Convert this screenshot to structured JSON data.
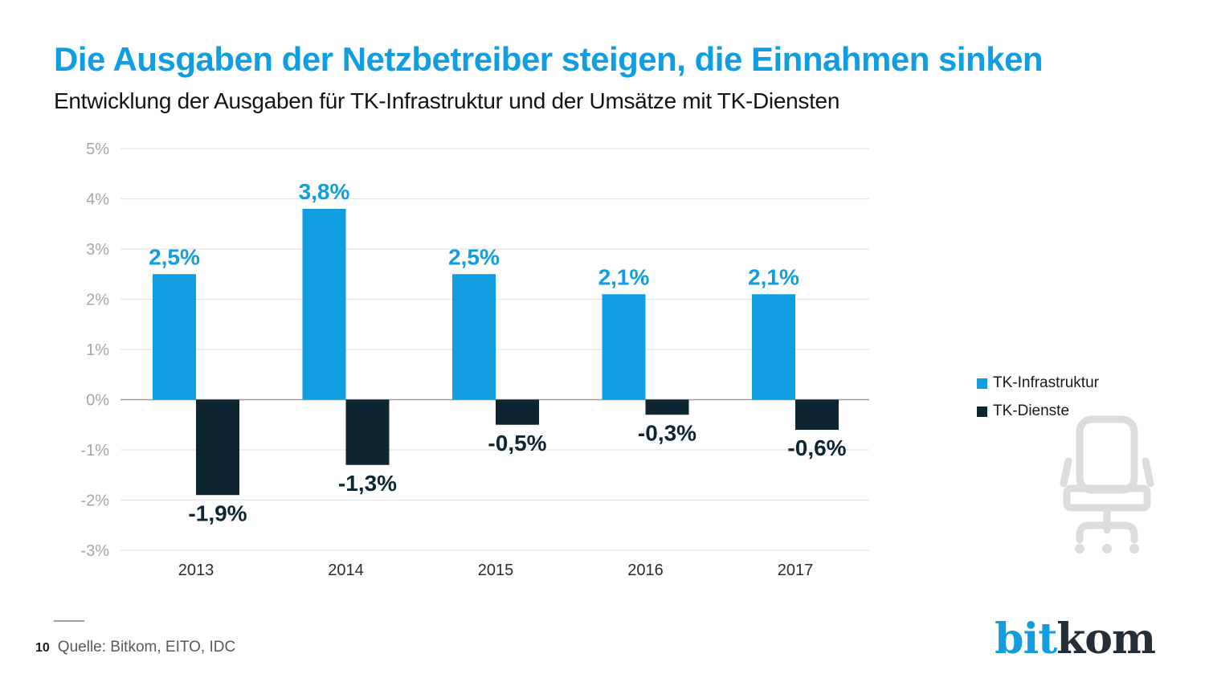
{
  "header": {
    "title": "Die Ausgaben der Netzbetreiber steigen, die Einnahmen sinken",
    "subtitle": "Entwicklung der Ausgaben für TK-Infrastruktur und der Umsätze mit TK-Diensten"
  },
  "chart_data": {
    "type": "bar",
    "categories": [
      "2013",
      "2014",
      "2015",
      "2016",
      "2017"
    ],
    "series": [
      {
        "name": "TK-Infrastruktur",
        "color": "#119ee0",
        "values": [
          2.5,
          3.8,
          2.5,
          2.1,
          2.1
        ],
        "labels": [
          "2,5%",
          "3,8%",
          "2,5%",
          "2,1%",
          "2,1%"
        ]
      },
      {
        "name": "TK-Dienste",
        "color": "#0e2631",
        "values": [
          -1.9,
          -1.3,
          -0.5,
          -0.3,
          -0.6
        ],
        "labels": [
          "-1,9%",
          "-1,3%",
          "-0,5%",
          "-0,3%",
          "-0,6%"
        ]
      }
    ],
    "ylim": [
      -3,
      5
    ],
    "yticks": [
      5,
      4,
      3,
      2,
      1,
      0,
      -1,
      -2,
      -3
    ],
    "ytick_labels": [
      "5%",
      "4%",
      "3%",
      "2%",
      "1%",
      "0%",
      "-1%",
      "-2%",
      "-3%"
    ],
    "grid": true,
    "legend_position": "right",
    "bar_value_labels": true
  },
  "legend": {
    "items": [
      {
        "label": "TK-Infrastruktur",
        "color": "#119ee0"
      },
      {
        "label": "TK-Dienste",
        "color": "#0e2631"
      }
    ]
  },
  "footer": {
    "page_number": "10",
    "source": "Quelle: Bitkom, EITO, IDC"
  },
  "logo": {
    "part1": "bit",
    "part2": "kom"
  },
  "colors": {
    "accent_blue": "#119ee0",
    "dark_navy": "#0e2631",
    "axis_text": "#a6a6a6",
    "gridline": "#e4e4e4",
    "baseline": "#999999",
    "category_text": "#2b2b2b",
    "chair_icon": "#dcdcdc"
  }
}
